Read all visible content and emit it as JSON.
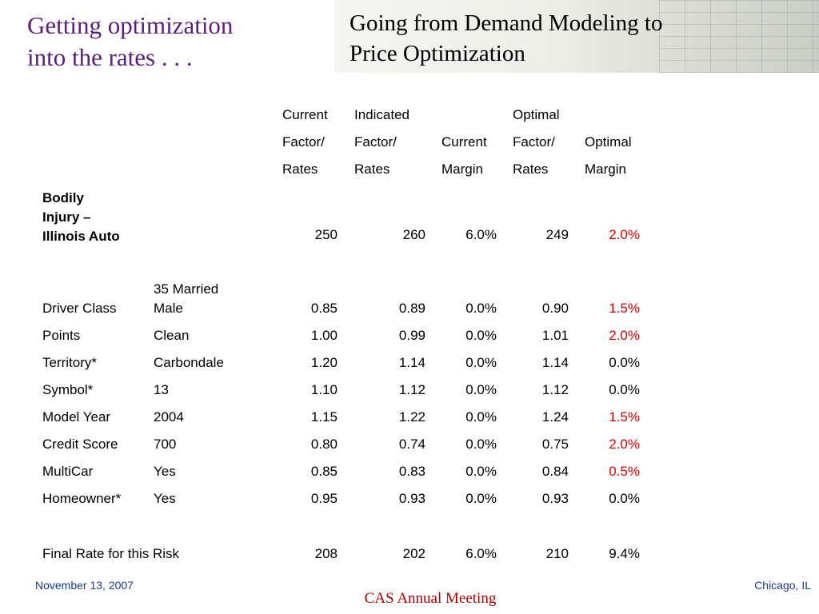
{
  "slide": {
    "left_title_line1": "Getting optimization",
    "left_title_line2": "into the rates . . .",
    "right_title_line1": "Going from Demand Modeling to",
    "right_title_line2": "Price Optimization"
  },
  "table": {
    "headers": [
      [
        "Current",
        "Factor/",
        "Rates"
      ],
      [
        "Indicated",
        "Factor/",
        "Rates"
      ],
      [
        "",
        "Current",
        "Margin"
      ],
      [
        "Optimal",
        "Factor/",
        "Rates"
      ],
      [
        "",
        "Optimal",
        "Margin"
      ]
    ],
    "base_row": {
      "label_line1": "Bodily",
      "label_line2": "Injury –",
      "label_line3": "Illinois Auto",
      "values": [
        "250",
        "260",
        "6.0%",
        "249",
        "2.0%"
      ]
    },
    "rows": [
      {
        "factor": "Driver Class",
        "level_line1": "35 Married",
        "level": "Male",
        "values": [
          "0.85",
          "0.89",
          "0.0%",
          "0.90",
          "1.5%"
        ]
      },
      {
        "factor": "Points",
        "level": "Clean",
        "values": [
          "1.00",
          "0.99",
          "0.0%",
          "1.01",
          "2.0%"
        ]
      },
      {
        "factor": "Territory*",
        "level": "Carbondale",
        "values": [
          "1.20",
          "1.14",
          "0.0%",
          "1.14",
          "0.0%"
        ]
      },
      {
        "factor": "Symbol*",
        "level": "13",
        "values": [
          "1.10",
          "1.12",
          "0.0%",
          "1.12",
          "0.0%"
        ]
      },
      {
        "factor": "Model Year",
        "level": "2004",
        "values": [
          "1.15",
          "1.22",
          "0.0%",
          "1.24",
          "1.5%"
        ]
      },
      {
        "factor": "Credit Score",
        "level": "700",
        "values": [
          "0.80",
          "0.74",
          "0.0%",
          "0.75",
          "2.0%"
        ]
      },
      {
        "factor": "MultiCar",
        "level": "Yes",
        "values": [
          "0.85",
          "0.83",
          "0.0%",
          "0.84",
          "0.5%"
        ]
      },
      {
        "factor": "Homeowner*",
        "level": "Yes",
        "values": [
          "0.95",
          "0.93",
          "0.0%",
          "0.93",
          "0.0%"
        ]
      }
    ],
    "final_row": {
      "label": "Final Rate for this Risk",
      "values": [
        "208",
        "202",
        "6.0%",
        "210",
        "9.4%"
      ]
    }
  },
  "footer": {
    "date": "November 13, 2007",
    "location": "Chicago, IL",
    "event": "CAS Annual Meeting"
  },
  "colors": {
    "title_purple": "#5a1f7a",
    "highlight_red": "#e00000",
    "footer_blue": "#1a3a8a",
    "event_red": "#b00000"
  },
  "icons": [
    "spreadsheet-background-image"
  ]
}
